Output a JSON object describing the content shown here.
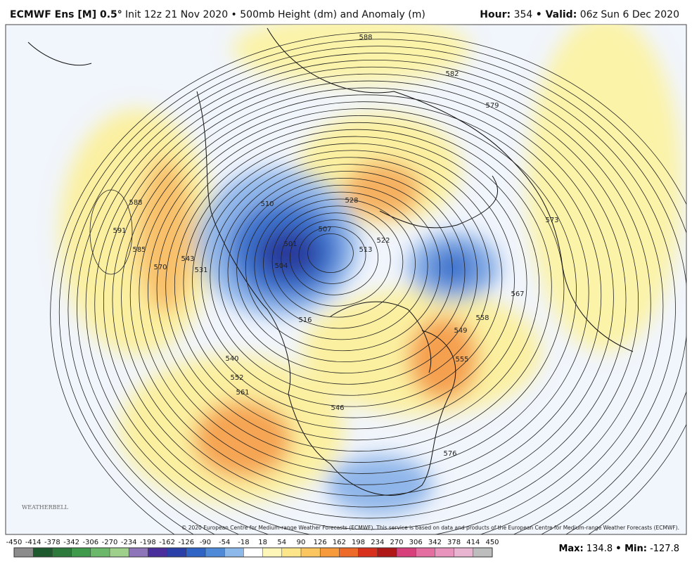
{
  "header": {
    "model": "ECMWF Ens [M] 0.5°",
    "subtitle": "Init 12z 21 Nov 2020 • 500mb Height (dm) and Anomaly (m)",
    "hour_label": "Hour:",
    "hour": 354,
    "valid_label": "• Valid:",
    "valid": "06z Sun 6 Dec 2020"
  },
  "map": {
    "contour_labels": [
      588,
      591,
      585,
      570,
      543,
      531,
      510,
      501,
      504,
      507,
      516,
      528,
      522,
      513,
      549,
      558,
      567,
      573,
      579,
      588,
      582,
      540,
      552,
      561,
      546,
      555,
      576
    ],
    "copyright": "© 2020 European Centre for Medium-range Weather Forecasts (ECMWF). This service is based on data and products of the European Centre for Medium-range Weather Forecasts (ECMWF).",
    "logo": "WEATHERBELL"
  },
  "colorbar": {
    "ticks": [
      -450,
      -414,
      -378,
      -342,
      -306,
      -270,
      -234,
      -198,
      -162,
      -126,
      -90,
      -54,
      -18,
      18,
      54,
      90,
      126,
      162,
      198,
      234,
      270,
      306,
      342,
      378,
      414,
      450
    ],
    "colors": [
      "#8c8c8c",
      "#1e5a2e",
      "#2d7a3c",
      "#3f9a4c",
      "#6cb86a",
      "#9ed08c",
      "#8e74b8",
      "#4a2f9c",
      "#2a3fa8",
      "#2f63c4",
      "#4f8ad8",
      "#8cb8ea",
      "#ffffff",
      "#fdf6b8",
      "#fde58a",
      "#fbc560",
      "#f79a3c",
      "#ee6a28",
      "#d9301e",
      "#b01818",
      "#d8407c",
      "#e46ea0",
      "#e894bc",
      "#e8b4d0",
      "#bdbdbd"
    ]
  },
  "footer": {
    "max_label": "Max:",
    "max": 134.8,
    "min_label": "• Min:",
    "min": -127.8
  }
}
